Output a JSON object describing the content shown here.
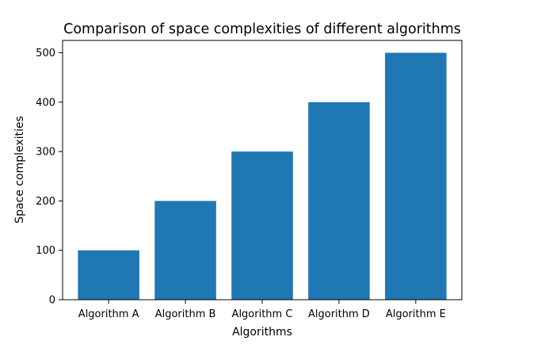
{
  "chart_data": {
    "type": "bar",
    "title": "Comparison of space complexities of different algorithms",
    "xlabel": "Algorithms",
    "ylabel": "Space complexities",
    "categories": [
      "Algorithm A",
      "Algorithm B",
      "Algorithm C",
      "Algorithm D",
      "Algorithm E"
    ],
    "values": [
      100,
      200,
      300,
      400,
      500
    ],
    "ylim": [
      0,
      525
    ],
    "yticks": [
      0,
      100,
      200,
      300,
      400,
      500
    ],
    "grid": false,
    "legend": "none",
    "bar_color": "#1f77b4"
  }
}
